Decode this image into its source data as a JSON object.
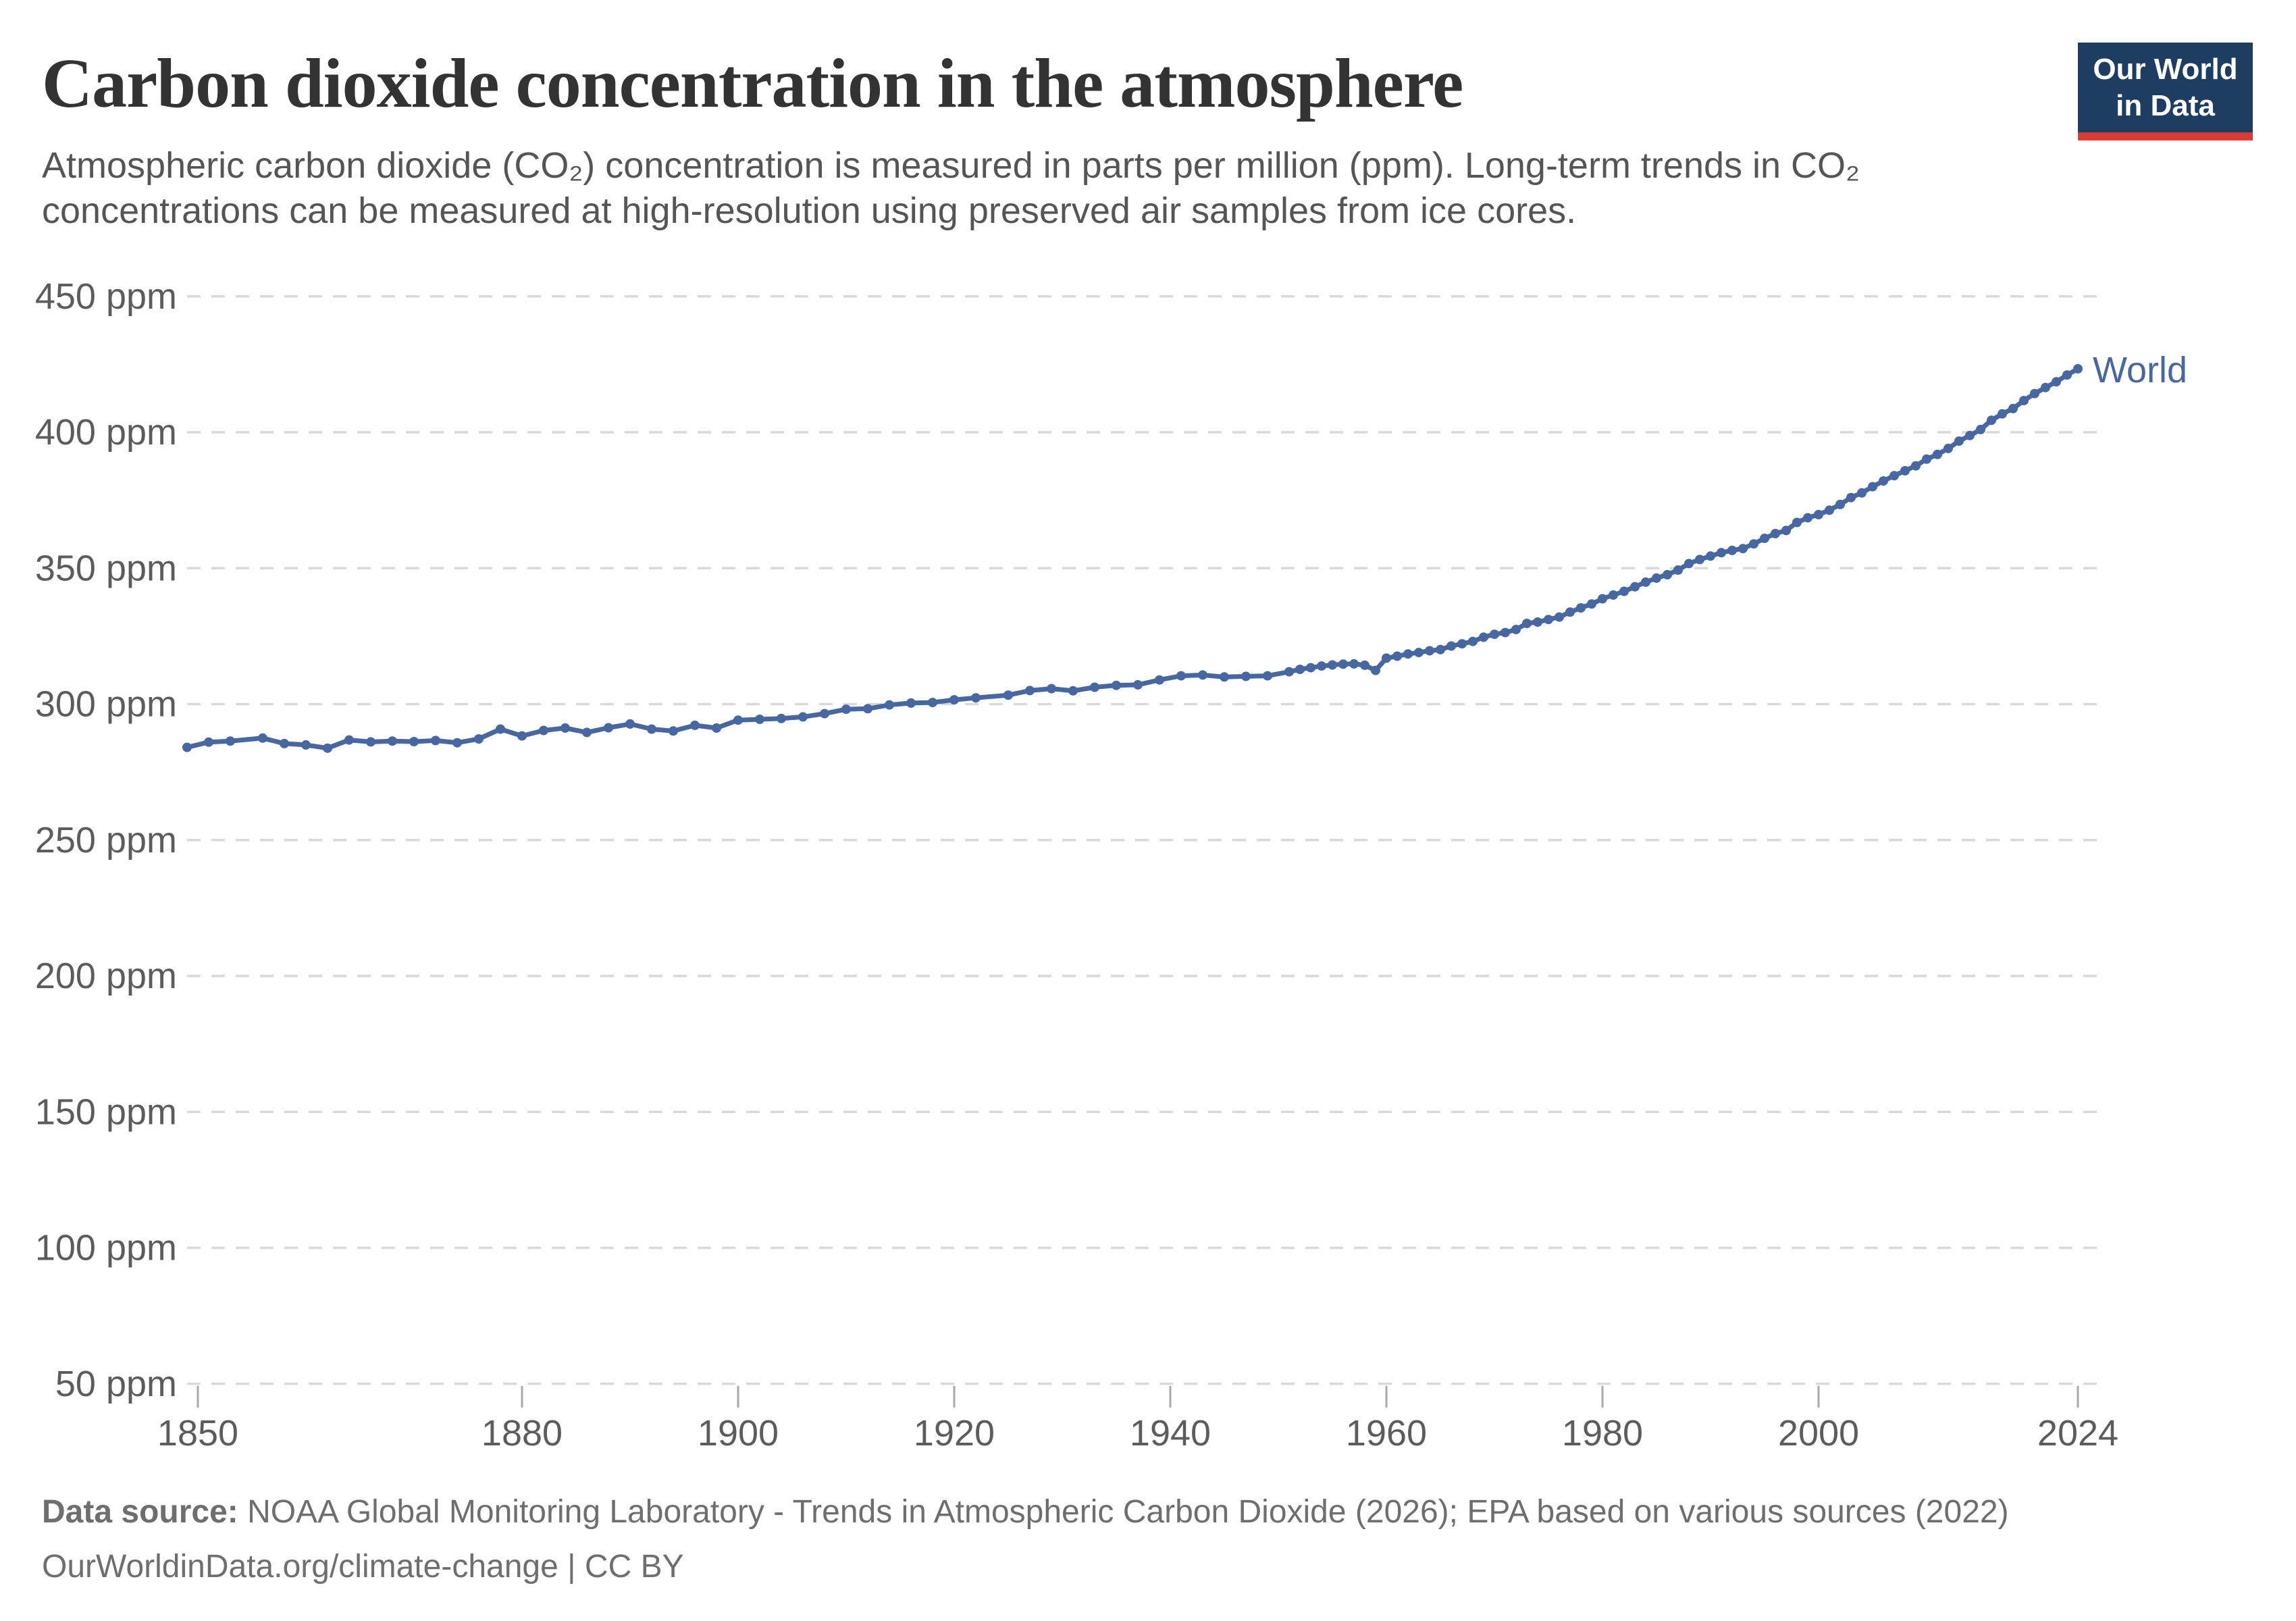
{
  "header": {
    "title": "Carbon dioxide concentration in the atmosphere",
    "subtitle_lines": [
      "Atmospheric carbon dioxide (CO₂) concentration is measured in parts per million (ppm). Long-term trends in CO₂",
      "concentrations can be measured at high-resolution using preserved air samples from ice cores."
    ]
  },
  "logo": {
    "line1": "Our World",
    "line2": "in Data"
  },
  "footer": {
    "source_label": "Data source:",
    "source_text": "NOAA Global Monitoring Laboratory - Trends in Atmospheric Carbon Dioxide (2026); EPA based on various sources (2022)",
    "citation": "OurWorldinData.org/climate-change | CC BY"
  },
  "theme": {
    "background": "#ffffff",
    "title_color": "#333333",
    "subtitle_color": "#555555",
    "footer_color": "#6e6e6e",
    "accent": "#4767a2",
    "grid_color": "#d9d9d9",
    "tick_color": "#a9a9a9",
    "axis_text_color": "#5c5c5c",
    "logo_bg": "#1d3d63",
    "logo_red": "#dc3b35"
  },
  "chart_data": {
    "type": "line",
    "title": "Carbon dioxide concentration in the atmosphere",
    "xlabel": "",
    "ylabel": "",
    "unit": "ppm",
    "grid": "horizontal-dashed",
    "legend_position": "end-of-line",
    "xlim": [
      1849,
      2026
    ],
    "ylim": [
      50,
      450
    ],
    "y_ticks": [
      {
        "value": 450,
        "label": "450 ppm"
      },
      {
        "value": 400,
        "label": "400 ppm"
      },
      {
        "value": 350,
        "label": "350 ppm"
      },
      {
        "value": 300,
        "label": "300 ppm"
      },
      {
        "value": 250,
        "label": "250 ppm"
      },
      {
        "value": 200,
        "label": "200 ppm"
      },
      {
        "value": 150,
        "label": "150 ppm"
      },
      {
        "value": 100,
        "label": "100 ppm"
      },
      {
        "value": 50,
        "label": "50 ppm"
      }
    ],
    "x_ticks": [
      1850,
      1880,
      1900,
      1920,
      1940,
      1960,
      1980,
      2000,
      2024
    ],
    "series": [
      {
        "name": "World",
        "color": "#4767a2",
        "points": [
          [
            1849,
            284.1
          ],
          [
            1851,
            286.0
          ],
          [
            1853,
            286.4
          ],
          [
            1856,
            287.5
          ],
          [
            1858,
            285.5
          ],
          [
            1860,
            285.0
          ],
          [
            1862,
            283.8
          ],
          [
            1864,
            286.8
          ],
          [
            1866,
            286.1
          ],
          [
            1868,
            286.4
          ],
          [
            1870,
            286.2
          ],
          [
            1872,
            286.6
          ],
          [
            1874,
            285.8
          ],
          [
            1876,
            287.2
          ],
          [
            1878,
            290.8
          ],
          [
            1880,
            288.3
          ],
          [
            1882,
            290.3
          ],
          [
            1884,
            291.2
          ],
          [
            1886,
            289.6
          ],
          [
            1888,
            291.3
          ],
          [
            1890,
            292.7
          ],
          [
            1892,
            290.8
          ],
          [
            1894,
            290.1
          ],
          [
            1896,
            292.2
          ],
          [
            1898,
            291.2
          ],
          [
            1900,
            294.1
          ],
          [
            1902,
            294.4
          ],
          [
            1904,
            294.7
          ],
          [
            1906,
            295.3
          ],
          [
            1908,
            296.5
          ],
          [
            1910,
            298.1
          ],
          [
            1912,
            298.3
          ],
          [
            1914,
            299.7
          ],
          [
            1916,
            300.4
          ],
          [
            1918,
            300.6
          ],
          [
            1920,
            301.6
          ],
          [
            1922,
            302.3
          ],
          [
            1925,
            303.3
          ],
          [
            1927,
            305.0
          ],
          [
            1929,
            305.7
          ],
          [
            1931,
            304.9
          ],
          [
            1933,
            306.2
          ],
          [
            1935,
            306.9
          ],
          [
            1937,
            307.1
          ],
          [
            1939,
            308.9
          ],
          [
            1941,
            310.4
          ],
          [
            1943,
            310.7
          ],
          [
            1945,
            310.0
          ],
          [
            1947,
            310.2
          ],
          [
            1949,
            310.4
          ],
          [
            1951,
            311.9
          ],
          [
            1952,
            312.8
          ],
          [
            1953,
            313.4
          ],
          [
            1954,
            314.0
          ],
          [
            1955,
            314.4
          ],
          [
            1956,
            314.7
          ],
          [
            1957,
            314.8
          ],
          [
            1958,
            314.3
          ],
          [
            1959,
            312.4
          ],
          [
            1960,
            316.91
          ],
          [
            1961,
            317.64
          ],
          [
            1962,
            318.45
          ],
          [
            1963,
            318.99
          ],
          [
            1964,
            319.62
          ],
          [
            1965,
            320.04
          ],
          [
            1966,
            321.37
          ],
          [
            1967,
            322.18
          ],
          [
            1968,
            323.05
          ],
          [
            1969,
            324.62
          ],
          [
            1970,
            325.68
          ],
          [
            1971,
            326.32
          ],
          [
            1972,
            327.46
          ],
          [
            1973,
            329.68
          ],
          [
            1974,
            330.19
          ],
          [
            1975,
            331.12
          ],
          [
            1976,
            332.03
          ],
          [
            1977,
            333.84
          ],
          [
            1978,
            335.41
          ],
          [
            1979,
            336.84
          ],
          [
            1980,
            338.76
          ],
          [
            1981,
            340.12
          ],
          [
            1982,
            341.48
          ],
          [
            1983,
            343.15
          ],
          [
            1984,
            344.87
          ],
          [
            1985,
            346.35
          ],
          [
            1986,
            347.61
          ],
          [
            1987,
            349.31
          ],
          [
            1988,
            351.69
          ],
          [
            1989,
            353.2
          ],
          [
            1990,
            354.45
          ],
          [
            1991,
            355.7
          ],
          [
            1992,
            356.54
          ],
          [
            1993,
            357.21
          ],
          [
            1994,
            358.96
          ],
          [
            1995,
            360.97
          ],
          [
            1996,
            362.74
          ],
          [
            1997,
            363.88
          ],
          [
            1998,
            366.84
          ],
          [
            1999,
            368.54
          ],
          [
            2000,
            369.71
          ],
          [
            2001,
            371.32
          ],
          [
            2002,
            373.45
          ],
          [
            2003,
            375.98
          ],
          [
            2004,
            377.7
          ],
          [
            2005,
            379.98
          ],
          [
            2006,
            382.09
          ],
          [
            2007,
            384.02
          ],
          [
            2008,
            385.83
          ],
          [
            2009,
            387.64
          ],
          [
            2010,
            390.1
          ],
          [
            2011,
            391.85
          ],
          [
            2012,
            394.06
          ],
          [
            2013,
            396.74
          ],
          [
            2014,
            398.81
          ],
          [
            2015,
            401.01
          ],
          [
            2016,
            404.41
          ],
          [
            2017,
            406.76
          ],
          [
            2018,
            408.72
          ],
          [
            2019,
            411.66
          ],
          [
            2020,
            414.24
          ],
          [
            2021,
            416.45
          ],
          [
            2022,
            418.56
          ],
          [
            2023,
            421.08
          ],
          [
            2024,
            423.35
          ]
        ]
      }
    ]
  }
}
